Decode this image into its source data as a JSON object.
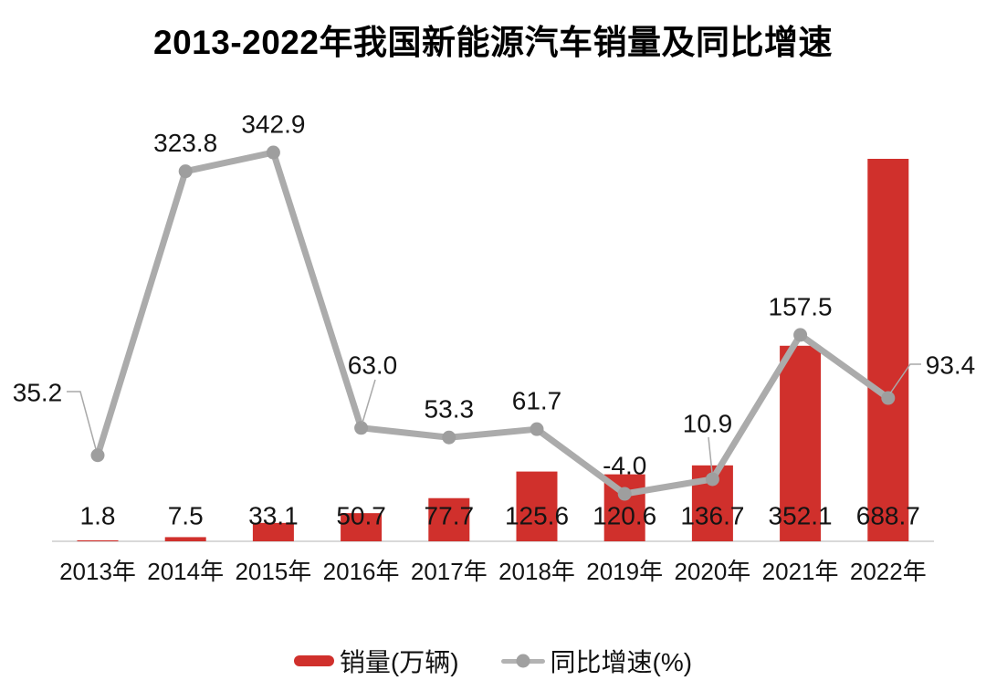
{
  "title": "2013-2022年我国新能源汽车销量及同比增速",
  "legend": {
    "sales_label": "销量(万辆)",
    "growth_label": "同比增速(%)"
  },
  "colors": {
    "bar_red": "#d0302c",
    "line_gray": "#ababab",
    "marker_gray": "#9e9e9e",
    "leader_gray": "#a9a9a9",
    "axis_gray": "#d9d9d9",
    "label_text": "#141414",
    "title_text": "#000000"
  },
  "chart_data": {
    "type": "bar",
    "combo": "bar+line",
    "title": "2013-2022年我国新能源汽车销量及同比增速",
    "categories": [
      "2013年",
      "2014年",
      "2015年",
      "2016年",
      "2017年",
      "2018年",
      "2019年",
      "2020年",
      "2021年",
      "2022年"
    ],
    "series": [
      {
        "name": "销量(万辆)",
        "type": "bar",
        "unit": "万辆",
        "values": [
          1.8,
          7.5,
          33.1,
          50.7,
          77.7,
          125.6,
          120.6,
          136.7,
          352.1,
          688.7
        ],
        "labels": [
          "1.8",
          "7.5",
          "33.1",
          "50.7",
          "77.7",
          "125.6",
          "120.6",
          "136.7",
          "352.1",
          "688.7"
        ]
      },
      {
        "name": "同比增速(%)",
        "type": "line",
        "unit": "%",
        "values": [
          35.2,
          323.8,
          342.9,
          63.0,
          53.3,
          61.7,
          -4.0,
          10.9,
          157.5,
          93.4
        ],
        "labels": [
          "35.2",
          "323.8",
          "342.9",
          "63.0",
          "53.3",
          "61.7",
          "-4.0",
          "10.9",
          "157.5",
          "93.4"
        ]
      }
    ],
    "xlabel": "",
    "ylabel": "",
    "y_axes_visible": false,
    "gridlines": false,
    "data_labels_visible": true,
    "legend_position": "bottom"
  }
}
